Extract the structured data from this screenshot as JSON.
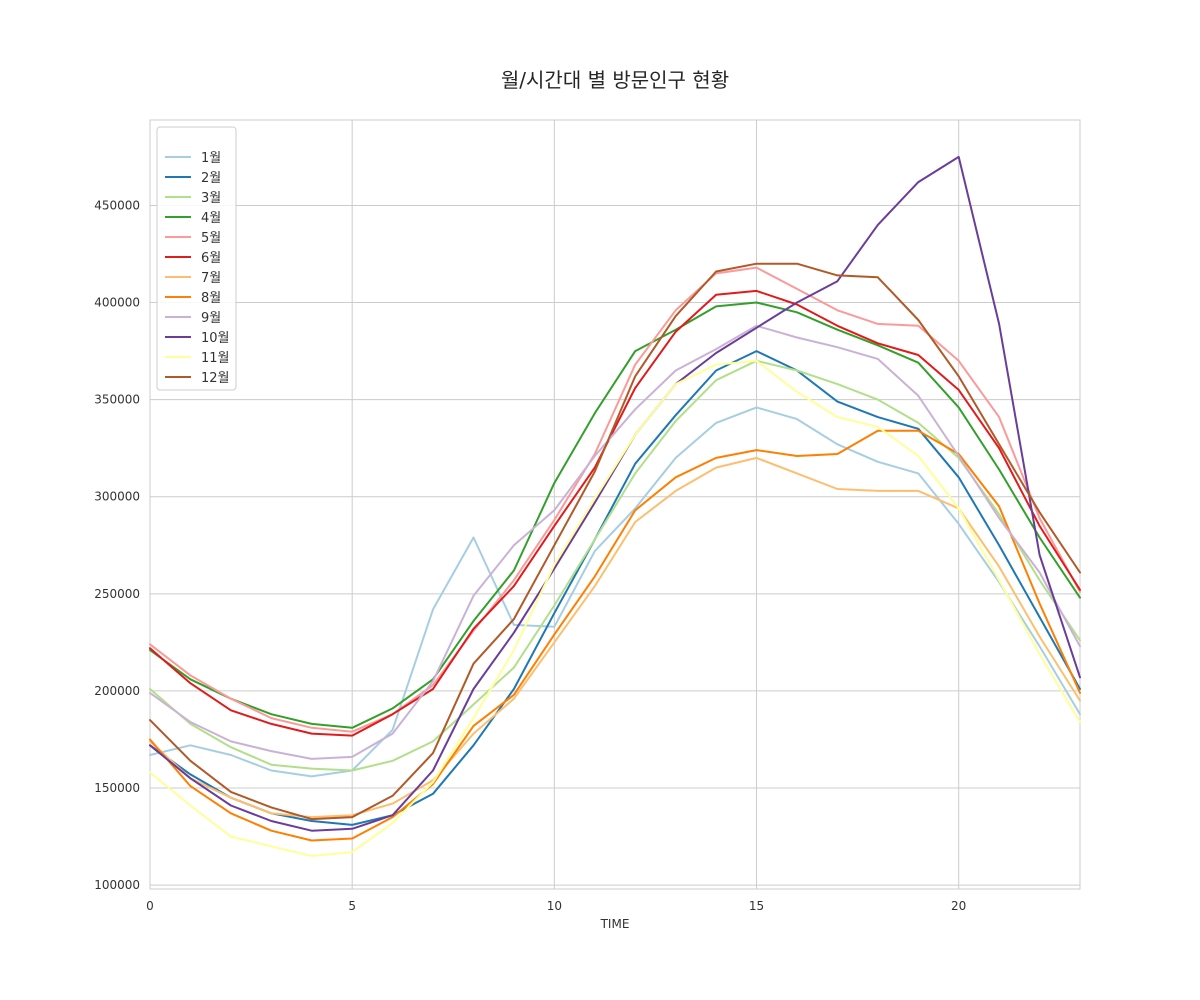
{
  "chart_data": {
    "type": "line",
    "title": "월/시간대 별 방문인구 현황",
    "xlabel": "TIME",
    "ylabel": "",
    "xlim": [
      0,
      23
    ],
    "ylim": [
      98000,
      494000
    ],
    "xticks": [
      0,
      5,
      10,
      15,
      20
    ],
    "yticks": [
      100000,
      150000,
      200000,
      250000,
      300000,
      350000,
      400000,
      450000
    ],
    "grid": true,
    "legend_position": "upper-left",
    "x": [
      0,
      1,
      2,
      3,
      4,
      5,
      6,
      7,
      8,
      9,
      10,
      11,
      12,
      13,
      14,
      15,
      16,
      17,
      18,
      19,
      20,
      21,
      22,
      23
    ],
    "series": [
      {
        "name": "1월",
        "color": "#a6cee3",
        "values": [
          167000,
          172000,
          167000,
          159000,
          156000,
          159000,
          180000,
          242000,
          279000,
          234000,
          233000,
          272000,
          294000,
          320000,
          338000,
          346000,
          340000,
          327000,
          318000,
          312000,
          286000,
          256000,
          223000,
          188000
        ]
      },
      {
        "name": "2월",
        "color": "#1f78b4",
        "values": [
          172000,
          157000,
          145000,
          137000,
          133000,
          131000,
          136000,
          147000,
          172000,
          201000,
          240000,
          278000,
          317000,
          342000,
          365000,
          375000,
          365000,
          349000,
          341000,
          335000,
          310000,
          275000,
          238000,
          201000
        ]
      },
      {
        "name": "3월",
        "color": "#b2df8a",
        "values": [
          201000,
          183000,
          171000,
          162000,
          160000,
          159000,
          164000,
          174000,
          193000,
          212000,
          244000,
          278000,
          312000,
          339000,
          360000,
          370000,
          365000,
          358000,
          350000,
          338000,
          320000,
          291000,
          257000,
          226000
        ]
      },
      {
        "name": "4월",
        "color": "#33a02c",
        "values": [
          221000,
          206000,
          196000,
          188000,
          183000,
          181000,
          191000,
          206000,
          236000,
          262000,
          307000,
          343000,
          375000,
          386000,
          398000,
          400000,
          395000,
          386000,
          378000,
          369000,
          346000,
          314000,
          279000,
          248000
        ]
      },
      {
        "name": "5월",
        "color": "#fb9a99",
        "values": [
          224000,
          208000,
          196000,
          186000,
          181000,
          179000,
          188000,
          203000,
          231000,
          257000,
          288000,
          322000,
          368000,
          396000,
          415000,
          418000,
          407000,
          396000,
          389000,
          388000,
          370000,
          341000,
          289000,
          251000
        ]
      },
      {
        "name": "6월",
        "color": "#e31a1c",
        "values": [
          222000,
          204000,
          190000,
          183000,
          178000,
          177000,
          188000,
          201000,
          232000,
          254000,
          285000,
          315000,
          356000,
          385000,
          404000,
          406000,
          399000,
          388000,
          379000,
          373000,
          355000,
          325000,
          285000,
          252000
        ]
      },
      {
        "name": "7월",
        "color": "#fdbf6f",
        "values": [
          174000,
          155000,
          145000,
          137000,
          135000,
          136000,
          142000,
          154000,
          178000,
          196000,
          225000,
          254000,
          287000,
          303000,
          315000,
          320000,
          312000,
          304000,
          303000,
          303000,
          294000,
          264000,
          228000,
          195000
        ]
      },
      {
        "name": "8월",
        "color": "#ff7f00",
        "values": [
          175000,
          151000,
          137000,
          128000,
          123000,
          124000,
          135000,
          152000,
          182000,
          198000,
          229000,
          259000,
          293000,
          310000,
          320000,
          324000,
          321000,
          322000,
          334000,
          334000,
          322000,
          295000,
          245000,
          199000
        ]
      },
      {
        "name": "9월",
        "color": "#cab2d6",
        "values": [
          199000,
          184000,
          174000,
          169000,
          165000,
          166000,
          178000,
          205000,
          249000,
          275000,
          293000,
          321000,
          345000,
          365000,
          376000,
          388000,
          382000,
          377000,
          371000,
          352000,
          321000,
          289000,
          261000,
          223000
        ]
      },
      {
        "name": "10월",
        "color": "#6a3d9a",
        "values": [
          172000,
          155000,
          141000,
          133000,
          128000,
          129000,
          136000,
          159000,
          201000,
          230000,
          263000,
          297000,
          332000,
          358000,
          374000,
          387000,
          400000,
          411000,
          440000,
          462000,
          475000,
          389000,
          270000,
          207000
        ]
      },
      {
        "name": "11월",
        "color": "#ffff99",
        "values": [
          158000,
          141000,
          125000,
          120000,
          115000,
          117000,
          132000,
          153000,
          186000,
          221000,
          265000,
          299000,
          332000,
          358000,
          368000,
          370000,
          354000,
          341000,
          336000,
          321000,
          294000,
          257000,
          219000,
          184000
        ]
      },
      {
        "name": "12월",
        "color": "#b15928",
        "values": [
          185000,
          164000,
          148000,
          140000,
          134000,
          135000,
          146000,
          168000,
          214000,
          237000,
          275000,
          313000,
          362000,
          393000,
          416000,
          420000,
          420000,
          414000,
          413000,
          391000,
          362000,
          327000,
          292000,
          261000
        ]
      }
    ]
  }
}
